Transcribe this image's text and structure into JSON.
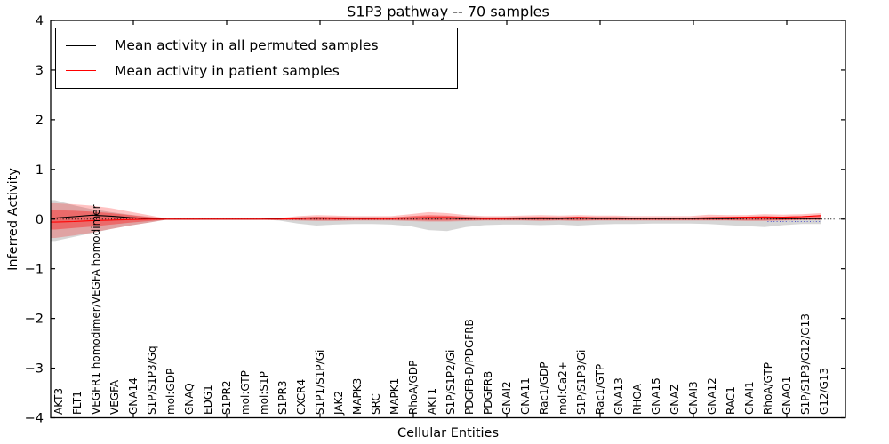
{
  "chart_data": {
    "type": "line",
    "title": "S1P3 pathway -- 70 samples",
    "xlabel": "Cellular Entities",
    "ylabel": "Inferred Activity",
    "ylim": [
      -4,
      4
    ],
    "yticks": [
      -4,
      -3,
      -2,
      -1,
      0,
      1,
      2,
      3,
      4
    ],
    "grid": false,
    "legend_position": "upper left",
    "categories": [
      "AKT3",
      "FLT1",
      "VEGFR1 homodimer/VEGFA homodimer",
      "VEGFA",
      "GNA14",
      "S1P/S1P3/Gq",
      "mol:GDP",
      "GNAQ",
      "EDG1",
      "S1PR2",
      "mol:GTP",
      "mol:S1P",
      "S1PR3",
      "CXCR4",
      "S1P1/S1P/Gi",
      "JAK2",
      "MAPK3",
      "SRC",
      "MAPK1",
      "RhoA/GDP",
      "AKT1",
      "S1P/S1P2/Gi",
      "PDGFB-D/PDGFRB",
      "PDGFRB",
      "GNAI2",
      "GNA11",
      "Rac1/GDP",
      "mol:Ca2+",
      "S1P/S1P3/Gi",
      "Rac1/GTP",
      "GNA13",
      "RHOA",
      "GNA15",
      "GNAZ",
      "GNAI3",
      "GNA12",
      "RAC1",
      "GNAI1",
      "RhoA/GTP",
      "GNAO1",
      "S1P/S1P3/G12/G13",
      "G12/G13"
    ],
    "xtick_mark_indices": [
      4,
      9,
      14,
      19,
      24,
      29,
      34,
      39
    ],
    "series": [
      {
        "name": "Mean activity in all permuted samples",
        "color": "#000000",
        "style": "solid",
        "values": [
          0.02,
          0.05,
          0.08,
          0.06,
          0.03,
          0.01,
          0.0,
          0.0,
          0.0,
          0.0,
          0.0,
          0.0,
          0.01,
          0.01,
          0.02,
          0.01,
          0.01,
          0.01,
          0.02,
          0.02,
          0.02,
          0.02,
          0.01,
          0.01,
          0.01,
          0.01,
          0.01,
          0.01,
          0.02,
          0.01,
          0.01,
          0.01,
          0.01,
          0.01,
          0.01,
          0.01,
          0.01,
          0.02,
          0.02,
          0.01,
          0.01,
          0.01
        ]
      },
      {
        "name": "Mean activity in patient samples",
        "color": "#ff0000",
        "style": "solid",
        "values": [
          -0.06,
          -0.05,
          -0.03,
          -0.02,
          -0.01,
          0.0,
          0.0,
          0.0,
          0.0,
          0.0,
          0.0,
          0.0,
          0.0,
          0.01,
          0.02,
          0.01,
          0.01,
          0.01,
          0.01,
          0.02,
          0.03,
          0.03,
          0.02,
          0.01,
          0.01,
          0.02,
          0.02,
          0.02,
          0.03,
          0.02,
          0.02,
          0.02,
          0.02,
          0.02,
          0.02,
          0.02,
          0.03,
          0.04,
          0.04,
          0.04,
          0.05,
          0.07
        ]
      }
    ],
    "bands": [
      {
        "name": "permuted-std-band",
        "color": "rgba(0,0,0,0.16)",
        "hi": [
          0.38,
          0.28,
          0.2,
          0.14,
          0.09,
          0.05,
          0.01,
          0.01,
          0.01,
          0.01,
          0.01,
          0.01,
          0.02,
          0.04,
          0.05,
          0.04,
          0.04,
          0.04,
          0.04,
          0.05,
          0.06,
          0.06,
          0.05,
          0.04,
          0.04,
          0.04,
          0.04,
          0.04,
          0.05,
          0.04,
          0.04,
          0.03,
          0.03,
          0.03,
          0.03,
          0.04,
          0.04,
          0.05,
          0.06,
          0.04,
          0.03,
          0.03
        ],
        "lo": [
          -0.44,
          -0.36,
          -0.28,
          -0.2,
          -0.13,
          -0.07,
          -0.01,
          -0.01,
          -0.01,
          -0.01,
          -0.01,
          -0.01,
          -0.03,
          -0.09,
          -0.13,
          -0.11,
          -0.1,
          -0.1,
          -0.11,
          -0.14,
          -0.22,
          -0.24,
          -0.16,
          -0.12,
          -0.11,
          -0.11,
          -0.12,
          -0.11,
          -0.13,
          -0.11,
          -0.1,
          -0.1,
          -0.09,
          -0.09,
          -0.09,
          -0.1,
          -0.12,
          -0.14,
          -0.16,
          -0.12,
          -0.1,
          -0.1
        ]
      },
      {
        "name": "patient-std-band-outer",
        "color": "rgba(255,0,0,0.24)",
        "hi": [
          0.32,
          0.3,
          0.27,
          0.22,
          0.15,
          0.08,
          0.01,
          0.01,
          0.01,
          0.01,
          0.01,
          0.01,
          0.02,
          0.06,
          0.08,
          0.07,
          0.06,
          0.06,
          0.06,
          0.1,
          0.14,
          0.12,
          0.08,
          0.06,
          0.06,
          0.07,
          0.08,
          0.07,
          0.08,
          0.07,
          0.07,
          0.06,
          0.06,
          0.06,
          0.06,
          0.09,
          0.08,
          0.08,
          0.1,
          0.09,
          0.1,
          0.12
        ],
        "lo": [
          -0.38,
          -0.33,
          -0.27,
          -0.2,
          -0.13,
          -0.07,
          -0.01,
          -0.01,
          -0.01,
          -0.01,
          -0.01,
          -0.01,
          -0.02,
          -0.03,
          -0.04,
          -0.04,
          -0.03,
          -0.03,
          -0.03,
          -0.04,
          -0.05,
          -0.05,
          -0.04,
          -0.03,
          -0.03,
          -0.03,
          -0.04,
          -0.03,
          -0.04,
          -0.03,
          -0.03,
          -0.03,
          -0.03,
          -0.03,
          -0.03,
          -0.03,
          -0.03,
          -0.04,
          -0.04,
          -0.03,
          -0.02,
          -0.02
        ]
      },
      {
        "name": "patient-std-band-inner",
        "color": "rgba(255,0,0,0.35)",
        "hi": [
          0.18,
          0.17,
          0.15,
          0.12,
          0.08,
          0.04,
          0.01,
          0.01,
          0.01,
          0.01,
          0.01,
          0.01,
          0.01,
          0.03,
          0.05,
          0.04,
          0.03,
          0.03,
          0.03,
          0.06,
          0.08,
          0.07,
          0.05,
          0.03,
          0.03,
          0.04,
          0.05,
          0.04,
          0.05,
          0.04,
          0.04,
          0.03,
          0.03,
          0.03,
          0.03,
          0.05,
          0.05,
          0.05,
          0.06,
          0.05,
          0.06,
          0.08
        ],
        "lo": [
          -0.21,
          -0.18,
          -0.15,
          -0.11,
          -0.07,
          -0.04,
          -0.01,
          -0.01,
          -0.01,
          -0.01,
          -0.01,
          -0.01,
          -0.01,
          -0.02,
          -0.02,
          -0.02,
          -0.02,
          -0.02,
          -0.02,
          -0.02,
          -0.03,
          -0.03,
          -0.02,
          -0.02,
          -0.02,
          -0.02,
          -0.02,
          -0.02,
          -0.02,
          -0.02,
          -0.02,
          -0.02,
          -0.02,
          -0.02,
          -0.02,
          -0.02,
          -0.02,
          -0.02,
          -0.02,
          -0.02,
          -0.01,
          -0.01
        ]
      }
    ],
    "reference_lines": [
      {
        "name": "zero-dotted-line",
        "value": 0,
        "color": "#000000",
        "dash": "1 2.4"
      },
      {
        "name": "right-aux-dotted-line",
        "value": -0.05,
        "color": "#5555cc",
        "dash": "1 2.4",
        "from_index": 38,
        "to_index": 41
      }
    ]
  },
  "legend": {
    "items": [
      {
        "label": "Mean activity in all permuted samples",
        "color": "#000000"
      },
      {
        "label": "Mean activity in patient samples",
        "color": "#ff0000"
      }
    ]
  }
}
